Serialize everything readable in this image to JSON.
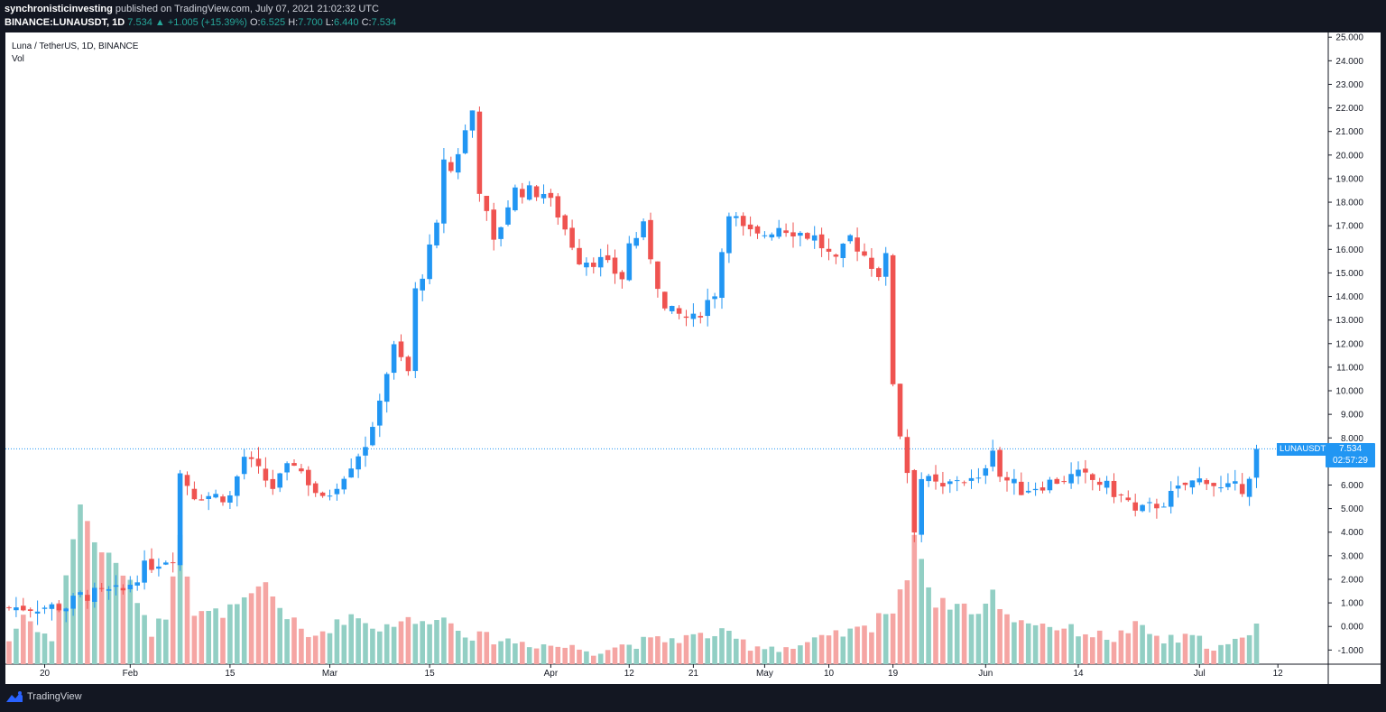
{
  "header": {
    "author": "synchronisticinvesting",
    "published": "published on TradingView.com, July 07, 2021 21:02:32 UTC",
    "symbol": "BINANCE:LUNAUSDT, 1D",
    "last": "7.534",
    "change_arrow": "▲",
    "change": "+1.005 (+15.39%)",
    "o_label": "O:",
    "o": "6.525",
    "h_label": "H:",
    "h": "7.700",
    "l_label": "L:",
    "l": "6.440",
    "c_label": "C:",
    "c": "7.534"
  },
  "legend": {
    "title": "Luna / TetherUS, 1D, BINANCE",
    "volume": "Vol"
  },
  "price_tag": {
    "symbol": "LUNAUSDT",
    "price": "7.534",
    "countdown": "02:57:29"
  },
  "footer": {
    "brand": "TradingView",
    "icon": "tradingview-logo"
  },
  "colors": {
    "up": "#2196f3",
    "down": "#ef5350",
    "vol_up": "#92cfc4",
    "vol_down": "#f5a5a3"
  },
  "chart_data": {
    "type": "candlestick",
    "y_axis": {
      "range": [
        -1.6,
        25.2
      ],
      "ticks": [
        "25.000",
        "24.000",
        "23.000",
        "22.000",
        "21.000",
        "20.000",
        "19.000",
        "18.000",
        "17.000",
        "16.000",
        "15.000",
        "14.000",
        "13.000",
        "12.000",
        "11.000",
        "10.000",
        "9.000",
        "8.000",
        "7.000",
        "6.000",
        "5.000",
        "4.000",
        "3.000",
        "2.000",
        "1.000",
        "0.000",
        "-1.000"
      ]
    },
    "x_axis": {
      "ticks": [
        {
          "label": "20",
          "day": 5
        },
        {
          "label": "Feb",
          "day": 17
        },
        {
          "label": "15",
          "day": 31
        },
        {
          "label": "Mar",
          "day": 45
        },
        {
          "label": "15",
          "day": 59
        },
        {
          "label": "Apr",
          "day": 76
        },
        {
          "label": "12",
          "day": 87
        },
        {
          "label": "21",
          "day": 96
        },
        {
          "label": "May",
          "day": 106
        },
        {
          "label": "10",
          "day": 115
        },
        {
          "label": "19",
          "day": 124
        },
        {
          "label": "Jun",
          "day": 137
        },
        {
          "label": "14",
          "day": 150
        },
        {
          "label": "Jul",
          "day": 167
        },
        {
          "label": "12",
          "day": 178
        }
      ]
    },
    "last_price": 7.534,
    "key_points": [
      [
        0,
        0.8
      ],
      [
        8,
        0.85
      ],
      [
        10,
        1.3
      ],
      [
        16,
        1.5
      ],
      [
        19,
        2.5
      ],
      [
        23,
        3.0
      ],
      [
        24,
        6.5
      ],
      [
        26,
        5.6
      ],
      [
        31,
        5.5
      ],
      [
        33,
        7.2
      ],
      [
        37,
        5.9
      ],
      [
        40,
        7.0
      ],
      [
        44,
        5.3
      ],
      [
        47,
        6.5
      ],
      [
        51,
        8.2
      ],
      [
        52,
        9.8
      ],
      [
        54,
        11.8
      ],
      [
        56,
        10.8
      ],
      [
        57,
        14.2
      ],
      [
        58,
        15.0
      ],
      [
        60,
        16.9
      ],
      [
        61,
        19.9
      ],
      [
        62,
        19.3
      ],
      [
        64,
        21.0
      ],
      [
        65,
        21.9
      ],
      [
        66,
        18.6
      ],
      [
        68,
        16.2
      ],
      [
        70,
        17.9
      ],
      [
        71,
        18.5
      ],
      [
        75,
        18.4
      ],
      [
        77,
        17.5
      ],
      [
        80,
        15.6
      ],
      [
        83,
        15.5
      ],
      [
        86,
        14.8
      ],
      [
        87,
        16.2
      ],
      [
        89,
        16.9
      ],
      [
        92,
        13.4
      ],
      [
        96,
        13.0
      ],
      [
        99,
        14.2
      ],
      [
        101,
        17.7
      ],
      [
        103,
        16.8
      ],
      [
        105,
        16.5
      ],
      [
        108,
        17.0
      ],
      [
        113,
        16.5
      ],
      [
        116,
        15.4
      ],
      [
        118,
        16.5
      ],
      [
        122,
        15.0
      ],
      [
        123,
        15.6
      ],
      [
        124,
        10.4
      ],
      [
        125,
        8.2
      ],
      [
        126,
        6.6
      ],
      [
        127,
        4.2
      ],
      [
        128,
        6.3
      ],
      [
        131,
        5.8
      ],
      [
        133,
        6.3
      ],
      [
        136,
        6.1
      ],
      [
        138,
        7.7
      ],
      [
        139,
        6.4
      ],
      [
        142,
        5.8
      ],
      [
        147,
        6.2
      ],
      [
        150,
        6.4
      ],
      [
        153,
        6.1
      ],
      [
        157,
        5.3
      ],
      [
        158,
        4.8
      ],
      [
        162,
        5.3
      ],
      [
        165,
        6.0
      ],
      [
        168,
        6.3
      ],
      [
        170,
        5.8
      ],
      [
        173,
        5.9
      ],
      [
        174,
        6.5
      ],
      [
        175,
        7.534
      ]
    ],
    "volume_key_points": [
      [
        0,
        -0.6
      ],
      [
        2,
        0.5
      ],
      [
        6,
        -0.6
      ],
      [
        10,
        5.2
      ],
      [
        12,
        3.6
      ],
      [
        16,
        2.3
      ],
      [
        18,
        1.2
      ],
      [
        20,
        -0.2
      ],
      [
        22,
        0.5
      ],
      [
        24,
        4.1
      ],
      [
        26,
        0.5
      ],
      [
        30,
        0.6
      ],
      [
        33,
        1.0
      ],
      [
        36,
        1.8
      ],
      [
        38,
        0.8
      ],
      [
        42,
        -0.5
      ],
      [
        46,
        0.1
      ],
      [
        48,
        0.5
      ],
      [
        52,
        -0.1
      ],
      [
        55,
        0.3
      ],
      [
        58,
        0.1
      ],
      [
        60,
        0.5
      ],
      [
        65,
        -0.4
      ],
      [
        70,
        -0.6
      ],
      [
        76,
        -0.8
      ],
      [
        82,
        -1.0
      ],
      [
        88,
        -0.7
      ],
      [
        94,
        -0.5
      ],
      [
        100,
        -0.3
      ],
      [
        104,
        -0.8
      ],
      [
        110,
        -0.9
      ],
      [
        116,
        -0.4
      ],
      [
        121,
        0.0
      ],
      [
        122,
        0.6
      ],
      [
        124,
        0.6
      ],
      [
        126,
        2.1
      ],
      [
        127,
        4.1
      ],
      [
        128,
        2.9
      ],
      [
        129,
        1.7
      ],
      [
        130,
        1.0
      ],
      [
        134,
        0.9
      ],
      [
        136,
        0.5
      ],
      [
        138,
        1.4
      ],
      [
        140,
        0.4
      ],
      [
        145,
        0.1
      ],
      [
        150,
        -0.2
      ],
      [
        155,
        -0.5
      ],
      [
        158,
        0.0
      ],
      [
        162,
        -0.6
      ],
      [
        166,
        -0.5
      ],
      [
        170,
        -0.9
      ],
      [
        174,
        -0.5
      ],
      [
        175,
        0.0
      ]
    ],
    "grid": false,
    "series": [
      {
        "name": "LUNAUSDT",
        "kind": "candles"
      },
      {
        "name": "Vol",
        "kind": "volume-bars"
      }
    ]
  }
}
